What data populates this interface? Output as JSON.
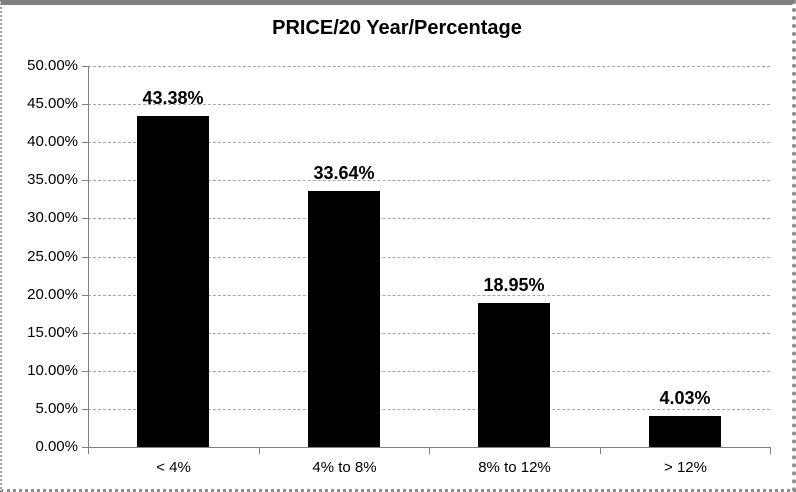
{
  "chart": {
    "title": "PRICE/20 Year/Percentage",
    "colors": {
      "bar": "#000000",
      "gridline": "#a6a6a6",
      "axis": "#808080",
      "text": "#000000",
      "background": "#ffffff",
      "frame_border": "#8c8c8c"
    }
  },
  "chart_data": {
    "type": "bar",
    "title": "PRICE/20 Year/Percentage",
    "categories": [
      "< 4%",
      "4% to 8%",
      "8% to 12%",
      "> 12%"
    ],
    "values": [
      43.38,
      33.64,
      18.95,
      4.03
    ],
    "data_labels": [
      "43.38%",
      "33.64%",
      "18.95%",
      "4.03%"
    ],
    "xlabel": "",
    "ylabel": "",
    "ylim": [
      0,
      50
    ],
    "ytick_step": 5,
    "ytick_labels": [
      "0.00%",
      "5.00%",
      "10.00%",
      "15.00%",
      "20.00%",
      "25.00%",
      "30.00%",
      "35.00%",
      "40.00%",
      "45.00%",
      "50.00%"
    ],
    "grid": true,
    "legend": false,
    "bar_color": "#000000",
    "series_name": ""
  }
}
